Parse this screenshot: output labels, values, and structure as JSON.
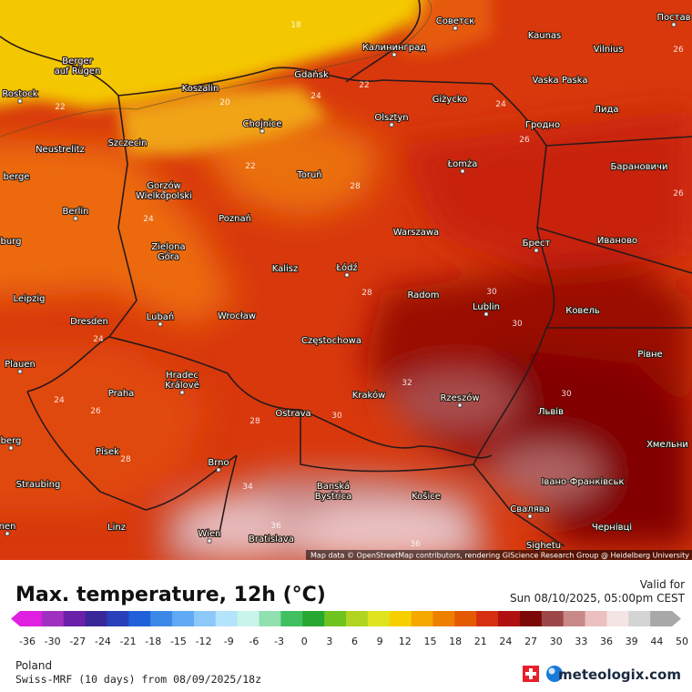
{
  "map": {
    "cities": [
      "Советск",
      "Kaunas",
      "Vilnius",
      "Постав",
      "Berger",
      "auf Rügen",
      "Калининград",
      "Gdańsk",
      "Koszalin",
      "Rostock",
      "Vaska Paska",
      "Giżycko",
      "Olsztyn",
      "Лида",
      "Гродно",
      "Chojnice",
      "Neustrelitz",
      "Szczecin",
      "Łomża",
      "Барановичи",
      "berge",
      "Gorzów",
      "Wielkopolski",
      "Toruń",
      "Berlin",
      "Warszawa",
      "Poznań",
      "Брест",
      "Иваново",
      "burg",
      "Zielona",
      "Góra",
      "Kalisz",
      "Łódź",
      "Radom",
      "Leipzig",
      "Lublin",
      "Ковель",
      "Dresden",
      "Lubań",
      "Wrocław",
      "Częstochowa",
      "Plauen",
      "Рівне",
      "Hradec",
      "Králové",
      "Praha",
      "Kraków",
      "Rzeszów",
      "Львів",
      "Ostrava",
      "berg",
      "Хмельни",
      "Písek",
      "Brno",
      "Straubing",
      "Івано-Франківськ",
      "Banská",
      "Bystrica",
      "Košice",
      "Свалява",
      "Linz",
      "Чернівці",
      "Wien",
      "Bratislava",
      "Sighetu",
      "nen"
    ],
    "contour_labels": [
      18,
      22,
      20,
      24,
      22,
      24,
      26,
      26,
      28,
      24,
      22,
      26,
      28,
      30,
      30,
      24,
      24,
      26,
      28,
      30,
      32,
      28,
      34,
      36,
      36,
      30
    ],
    "attribution": "Map data © OpenStreetMap contributors, rendering GIScience Research Group @ Heidelberg University"
  },
  "legend": {
    "title": "Max. temperature, 12h (°C)",
    "valid_label": "Valid for",
    "valid_time": "Sun 08/10/2025, 05:00pm CEST",
    "ticks": [
      -36,
      -30,
      -27,
      -24,
      -21,
      -18,
      -15,
      -12,
      -9,
      -6,
      -3,
      0,
      3,
      6,
      9,
      12,
      15,
      18,
      21,
      24,
      27,
      30,
      33,
      36,
      39,
      44,
      50
    ],
    "colors": [
      "#e020e0",
      "#a030c0",
      "#6a20a8",
      "#3a2898",
      "#2840b8",
      "#2060d8",
      "#3c88e8",
      "#60a8f4",
      "#8cc8fa",
      "#b4e4fc",
      "#c8f4ec",
      "#90e0b0",
      "#40c060",
      "#28a830",
      "#70c420",
      "#b0d420",
      "#e0e420",
      "#f8d000",
      "#f4a800",
      "#ee8000",
      "#e45a00",
      "#d43010",
      "#b01010",
      "#7c0808",
      "#9c4848",
      "#c88888",
      "#ecc0c0",
      "#f4e4e4",
      "#d4d4d4",
      "#a8a8a8"
    ]
  },
  "footer": {
    "region": "Poland",
    "model": "Swiss-MRF (10 days) from 08/09/2025/18z",
    "brand": "meteologix.com"
  }
}
